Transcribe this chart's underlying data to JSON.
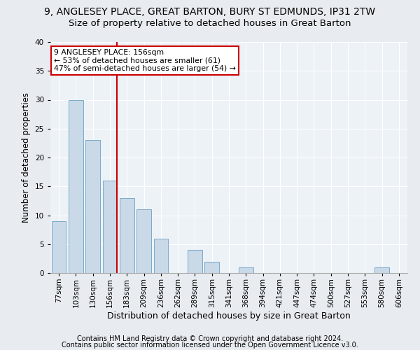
{
  "title1": "9, ANGLESEY PLACE, GREAT BARTON, BURY ST EDMUNDS, IP31 2TW",
  "title2": "Size of property relative to detached houses in Great Barton",
  "xlabel": "Distribution of detached houses by size in Great Barton",
  "ylabel": "Number of detached properties",
  "categories": [
    "77sqm",
    "103sqm",
    "130sqm",
    "156sqm",
    "183sqm",
    "209sqm",
    "236sqm",
    "262sqm",
    "289sqm",
    "315sqm",
    "341sqm",
    "368sqm",
    "394sqm",
    "421sqm",
    "447sqm",
    "474sqm",
    "500sqm",
    "527sqm",
    "553sqm",
    "580sqm",
    "606sqm"
  ],
  "values": [
    9,
    30,
    23,
    16,
    13,
    11,
    6,
    0,
    4,
    2,
    0,
    1,
    0,
    0,
    0,
    0,
    0,
    0,
    0,
    1,
    0
  ],
  "bar_color": "#c9d9e8",
  "bar_edge_color": "#7aaac8",
  "red_line_index": 3,
  "annotation_line1": "9 ANGLESEY PLACE: 156sqm",
  "annotation_line2": "← 53% of detached houses are smaller (61)",
  "annotation_line3": "47% of semi-detached houses are larger (54) →",
  "annotation_box_color": "#ffffff",
  "annotation_box_edge": "#cc0000",
  "red_line_color": "#cc0000",
  "ylim": [
    0,
    40
  ],
  "yticks": [
    0,
    5,
    10,
    15,
    20,
    25,
    30,
    35,
    40
  ],
  "footer1": "Contains HM Land Registry data © Crown copyright and database right 2024.",
  "footer2": "Contains public sector information licensed under the Open Government Licence v3.0.",
  "bg_color": "#e8ecf0",
  "plot_bg_color": "#edf2f7",
  "title1_fontsize": 10,
  "title2_fontsize": 9.5,
  "xlabel_fontsize": 9,
  "ylabel_fontsize": 8.5,
  "tick_fontsize": 7.5,
  "footer_fontsize": 7
}
